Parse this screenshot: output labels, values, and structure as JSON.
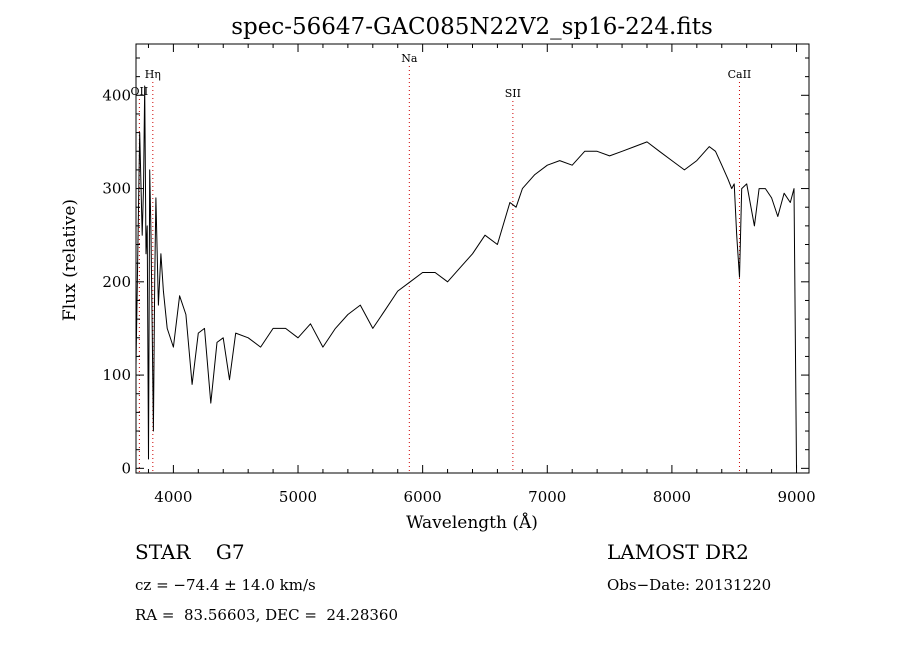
{
  "chart_data": {
    "type": "line",
    "title": "spec-56647-GAC085N22V2_sp16-224.fits",
    "xlabel": "Wavelength (Å)",
    "ylabel": "Flux (relative)",
    "xlim": [
      3700,
      9100
    ],
    "ylim": [
      -5,
      455
    ],
    "x_ticks": [
      4000,
      5000,
      6000,
      7000,
      8000,
      9000
    ],
    "y_ticks": [
      0,
      100,
      200,
      300,
      400
    ],
    "grid": false,
    "line_color": "#000000",
    "series": [
      {
        "x": [
          3700,
          3730,
          3750,
          3760,
          3770,
          3780,
          3790,
          3800,
          3810,
          3820,
          3830,
          3840,
          3850,
          3860,
          3870,
          3880,
          3900,
          3920,
          3950,
          4000,
          4050,
          4100,
          4150,
          4200,
          4250,
          4300,
          4350,
          4400,
          4450,
          4500,
          4600,
          4700,
          4800,
          4900,
          5000,
          5100,
          5200,
          5300,
          5400,
          5500,
          5600,
          5700,
          5800,
          5900,
          6000,
          6100,
          6200,
          6300,
          6400,
          6500,
          6600,
          6700,
          6750,
          6800,
          6900,
          7000,
          7100,
          7200,
          7300,
          7400,
          7500,
          7600,
          7700,
          7800,
          7900,
          8000,
          8100,
          8200,
          8300,
          8350,
          8400,
          8450,
          8480,
          8500,
          8520,
          8542,
          8560,
          8600,
          8662,
          8700,
          8750,
          8800,
          8850,
          8900,
          8950,
          8980,
          9000
        ],
        "y": [
          110,
          360,
          250,
          300,
          410,
          230,
          260,
          10,
          320,
          250,
          150,
          40,
          200,
          290,
          230,
          175,
          230,
          190,
          150,
          130,
          185,
          165,
          90,
          145,
          150,
          70,
          135,
          140,
          95,
          145,
          140,
          130,
          150,
          150,
          140,
          155,
          130,
          150,
          165,
          175,
          150,
          170,
          190,
          200,
          210,
          210,
          200,
          215,
          230,
          250,
          240,
          285,
          280,
          300,
          315,
          325,
          330,
          325,
          340,
          340,
          335,
          340,
          345,
          350,
          340,
          330,
          320,
          330,
          345,
          340,
          325,
          310,
          300,
          305,
          250,
          205,
          300,
          305,
          260,
          300,
          300,
          290,
          270,
          295,
          285,
          300,
          0
        ]
      }
    ],
    "line_markers": [
      {
        "label": "OII",
        "x": 3727,
        "color": "#cc0000"
      },
      {
        "label": "Hη",
        "x": 3835,
        "color": "#cc0000"
      },
      {
        "label": "Na",
        "x": 5893,
        "color": "#cc0000"
      },
      {
        "label": "SII",
        "x": 6724,
        "color": "#cc0000"
      },
      {
        "label": "CaII",
        "x": 8542,
        "color": "#cc0000"
      }
    ]
  },
  "info": {
    "object": "STAR    G7",
    "survey": "LAMOST DR2",
    "cz": "cz = −74.4 ± 14.0 km/s",
    "obs_date": "Obs−Date: 20131220",
    "coords": "RA =  83.56603, DEC =  24.28360"
  }
}
